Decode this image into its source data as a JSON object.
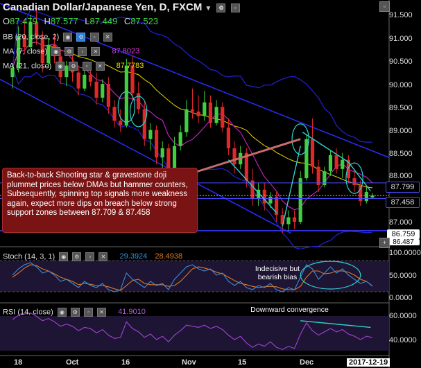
{
  "header": {
    "title": "Canadian Dollar/Japanese Yen, D, FXCM",
    "ohlc": [
      {
        "k": "O",
        "v": "87.479"
      },
      {
        "k": "H",
        "v": "87.577"
      },
      {
        "k": "L",
        "v": "87.449"
      },
      {
        "k": "C",
        "v": "87.523"
      }
    ]
  },
  "indicators": {
    "bb": {
      "label": "BB (20, close, 2)"
    },
    "ma7": {
      "label": "MA (7, close)",
      "value": "87.8023"
    },
    "ma21": {
      "label": "MA (21, close)",
      "value": "87.7783"
    },
    "stoch": {
      "label": "Stoch (14, 3, 1)",
      "k": "29.3924",
      "d": "28.4938"
    },
    "rsi": {
      "label": "RSI (14, close)",
      "value": "41.9010"
    }
  },
  "annotations": {
    "callout": "Back-to-back Shooting star & gravestone doji plummet prices below DMAs but hammer counters, Subsequently, spinning top signals more weakness again, expect more dips on breach below strong support zones between 87.709 & 87.458",
    "stoch_note": "Indecisive but bearish bias",
    "rsi_note": "Downward convergence"
  },
  "price_axis": {
    "ticks": [
      "91.500",
      "91.000",
      "90.500",
      "90.000",
      "89.500",
      "89.000",
      "88.500",
      "88.000",
      "87.000"
    ],
    "tags": [
      {
        "value": "87.799",
        "style": "outline"
      },
      {
        "value": "87.458",
        "style": "outline"
      },
      {
        "value": "86.759",
        "style": "white"
      },
      {
        "value": "86.487",
        "style": "partial"
      }
    ]
  },
  "stoch_axis": {
    "ticks": [
      "100.0000",
      "50.0000",
      "0.0000"
    ]
  },
  "rsi_axis": {
    "ticks": [
      "60.0000",
      "40.0000"
    ]
  },
  "time_axis": {
    "labels": [
      "18",
      "Oct",
      "16",
      "Nov",
      "15",
      "Dec"
    ],
    "current": "2017-12-19"
  },
  "colors": {
    "up": "#3fcf3f",
    "down": "#e02828",
    "bb": "#2222dd",
    "ma7": "#d020d0",
    "ma21": "#d8c800",
    "channel": "#2b2bff",
    "stochK": "#3a8fd8",
    "stochD": "#e07a20",
    "rsi": "#9b3fcf",
    "callout": "#7a1414",
    "annot": "#30d0d0"
  },
  "chart_data": {
    "type": "candlestick",
    "symbol": "CAD/JPY",
    "timeframe": "D",
    "ylim": [
      86.5,
      91.7
    ],
    "candles": [
      {
        "o": 90.1,
        "h": 90.4,
        "l": 89.85,
        "c": 90.3
      },
      {
        "o": 90.3,
        "h": 91.2,
        "l": 90.2,
        "c": 91.0
      },
      {
        "o": 91.0,
        "h": 91.35,
        "l": 90.6,
        "c": 90.75
      },
      {
        "o": 90.75,
        "h": 91.45,
        "l": 90.7,
        "c": 91.3
      },
      {
        "o": 91.3,
        "h": 91.55,
        "l": 90.8,
        "c": 90.95
      },
      {
        "o": 90.95,
        "h": 91.1,
        "l": 90.2,
        "c": 90.4
      },
      {
        "o": 90.4,
        "h": 90.95,
        "l": 90.3,
        "c": 90.8
      },
      {
        "o": 90.8,
        "h": 91.05,
        "l": 90.4,
        "c": 90.55
      },
      {
        "o": 90.55,
        "h": 90.7,
        "l": 89.95,
        "c": 90.1
      },
      {
        "o": 90.1,
        "h": 90.45,
        "l": 89.9,
        "c": 90.35
      },
      {
        "o": 90.35,
        "h": 90.6,
        "l": 90.0,
        "c": 90.2
      },
      {
        "o": 90.2,
        "h": 90.35,
        "l": 89.7,
        "c": 89.85
      },
      {
        "o": 89.85,
        "h": 90.3,
        "l": 89.8,
        "c": 90.15
      },
      {
        "o": 90.15,
        "h": 90.4,
        "l": 89.9,
        "c": 90.0
      },
      {
        "o": 90.0,
        "h": 90.2,
        "l": 89.5,
        "c": 89.65
      },
      {
        "o": 89.65,
        "h": 90.05,
        "l": 89.55,
        "c": 89.95
      },
      {
        "o": 89.95,
        "h": 90.1,
        "l": 89.3,
        "c": 89.45
      },
      {
        "o": 89.45,
        "h": 89.6,
        "l": 89.0,
        "c": 89.15
      },
      {
        "o": 89.15,
        "h": 89.4,
        "l": 88.9,
        "c": 89.05
      },
      {
        "o": 89.05,
        "h": 90.5,
        "l": 89.0,
        "c": 90.35
      },
      {
        "o": 90.35,
        "h": 90.55,
        "l": 89.6,
        "c": 89.75
      },
      {
        "o": 89.75,
        "h": 90.0,
        "l": 89.3,
        "c": 89.4
      },
      {
        "o": 89.4,
        "h": 89.55,
        "l": 88.6,
        "c": 88.75
      },
      {
        "o": 88.75,
        "h": 89.1,
        "l": 88.5,
        "c": 88.95
      },
      {
        "o": 88.95,
        "h": 89.05,
        "l": 88.2,
        "c": 88.35
      },
      {
        "o": 88.35,
        "h": 88.7,
        "l": 88.1,
        "c": 88.55
      },
      {
        "o": 88.55,
        "h": 88.65,
        "l": 87.9,
        "c": 88.05
      },
      {
        "o": 88.05,
        "h": 88.8,
        "l": 88.0,
        "c": 88.6
      },
      {
        "o": 88.6,
        "h": 89.05,
        "l": 88.5,
        "c": 88.9
      },
      {
        "o": 88.9,
        "h": 89.6,
        "l": 88.8,
        "c": 89.4
      },
      {
        "o": 89.4,
        "h": 89.85,
        "l": 89.2,
        "c": 89.35
      },
      {
        "o": 89.35,
        "h": 89.7,
        "l": 89.1,
        "c": 89.25
      },
      {
        "o": 89.25,
        "h": 89.8,
        "l": 89.15,
        "c": 89.55
      },
      {
        "o": 89.55,
        "h": 89.7,
        "l": 89.0,
        "c": 89.1
      },
      {
        "o": 89.1,
        "h": 89.6,
        "l": 89.05,
        "c": 89.45
      },
      {
        "o": 89.45,
        "h": 89.55,
        "l": 88.9,
        "c": 89.0
      },
      {
        "o": 89.0,
        "h": 89.2,
        "l": 88.4,
        "c": 88.55
      },
      {
        "o": 88.55,
        "h": 88.7,
        "l": 88.0,
        "c": 88.2
      },
      {
        "o": 88.2,
        "h": 88.6,
        "l": 88.1,
        "c": 88.45
      },
      {
        "o": 88.45,
        "h": 88.55,
        "l": 87.7,
        "c": 87.85
      },
      {
        "o": 87.85,
        "h": 88.1,
        "l": 87.3,
        "c": 87.45
      },
      {
        "o": 87.45,
        "h": 87.8,
        "l": 87.3,
        "c": 87.65
      },
      {
        "o": 87.65,
        "h": 87.8,
        "l": 87.2,
        "c": 87.35
      },
      {
        "o": 87.35,
        "h": 87.6,
        "l": 87.25,
        "c": 87.5
      },
      {
        "o": 87.5,
        "h": 87.6,
        "l": 86.95,
        "c": 87.1
      },
      {
        "o": 87.1,
        "h": 87.25,
        "l": 86.7,
        "c": 86.9
      },
      {
        "o": 86.9,
        "h": 87.2,
        "l": 86.75,
        "c": 87.05
      },
      {
        "o": 87.05,
        "h": 87.2,
        "l": 86.8,
        "c": 86.95
      },
      {
        "o": 86.95,
        "h": 88.05,
        "l": 86.9,
        "c": 87.9
      },
      {
        "o": 87.9,
        "h": 88.85,
        "l": 87.85,
        "c": 88.75
      },
      {
        "o": 88.75,
        "h": 89.2,
        "l": 88.0,
        "c": 88.15
      },
      {
        "o": 88.15,
        "h": 88.3,
        "l": 87.6,
        "c": 87.75
      },
      {
        "o": 87.75,
        "h": 88.15,
        "l": 87.7,
        "c": 88.05
      },
      {
        "o": 88.05,
        "h": 88.5,
        "l": 87.95,
        "c": 88.4
      },
      {
        "o": 88.4,
        "h": 88.55,
        "l": 88.0,
        "c": 88.1
      },
      {
        "o": 88.1,
        "h": 88.45,
        "l": 87.9,
        "c": 88.3
      },
      {
        "o": 88.3,
        "h": 88.4,
        "l": 87.8,
        "c": 87.9
      },
      {
        "o": 87.9,
        "h": 88.1,
        "l": 87.6,
        "c": 87.75
      },
      {
        "o": 87.75,
        "h": 87.85,
        "l": 87.3,
        "c": 87.4
      },
      {
        "o": 87.4,
        "h": 87.7,
        "l": 87.35,
        "c": 87.6
      },
      {
        "o": 87.479,
        "h": 87.577,
        "l": 87.449,
        "c": 87.523
      }
    ],
    "stoch_k": [
      55,
      70,
      80,
      85,
      75,
      60,
      65,
      55,
      40,
      45,
      35,
      25,
      40,
      30,
      25,
      35,
      20,
      15,
      20,
      60,
      45,
      35,
      25,
      40,
      30,
      35,
      20,
      45,
      60,
      75,
      80,
      70,
      65,
      70,
      55,
      60,
      40,
      30,
      40,
      25,
      20,
      30,
      25,
      35,
      20,
      15,
      25,
      20,
      50,
      80,
      70,
      45,
      60,
      75,
      60,
      70,
      55,
      45,
      35,
      40,
      29.39
    ],
    "stoch_d": [
      50,
      60,
      72,
      80,
      78,
      70,
      65,
      58,
      50,
      45,
      40,
      32,
      35,
      33,
      30,
      30,
      27,
      22,
      18,
      30,
      42,
      45,
      35,
      32,
      32,
      32,
      28,
      30,
      40,
      55,
      70,
      75,
      72,
      68,
      62,
      58,
      50,
      42,
      35,
      32,
      28,
      25,
      27,
      28,
      27,
      22,
      20,
      20,
      28,
      50,
      65,
      65,
      58,
      60,
      65,
      65,
      62,
      55,
      45,
      40,
      28.49
    ],
    "rsi": [
      58,
      62,
      63,
      64,
      61,
      57,
      59,
      56,
      52,
      54,
      52,
      48,
      51,
      50,
      46,
      49,
      44,
      41,
      42,
      56,
      50,
      47,
      42,
      45,
      40,
      43,
      38,
      44,
      48,
      53,
      52,
      51,
      53,
      50,
      52,
      49,
      44,
      40,
      43,
      37,
      33,
      36,
      34,
      38,
      33,
      31,
      34,
      32,
      45,
      55,
      48,
      44,
      47,
      50,
      47,
      49,
      45,
      43,
      40,
      43,
      41.9
    ]
  }
}
